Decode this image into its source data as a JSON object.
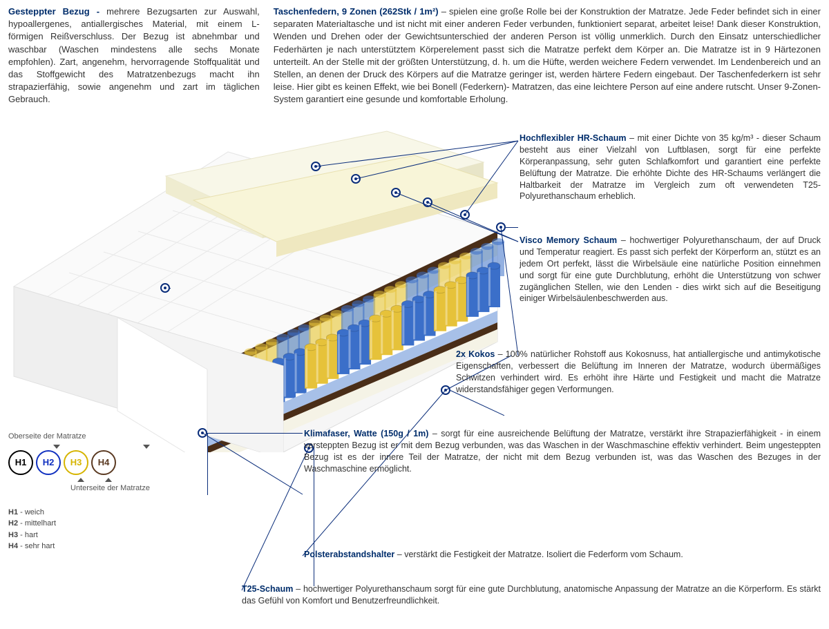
{
  "colors": {
    "title": "#002d6b",
    "body": "#333333",
    "leader": "#0a2d7a",
    "spring_blue": "#3b6fc9",
    "spring_yellow": "#e6c23a",
    "foam_white": "#f5f3e6",
    "cream": "#f8f5d8",
    "coco": "#4a2e18",
    "base_blue": "#a7c0e8",
    "cover": "#f0f0f0"
  },
  "top_left": {
    "title": "Gesteppter Bezug -",
    "text": " mehrere Bezugsarten zur Auswahl, hypoallergenes, antiallergisches Material, mit einem L-förmigen Reißverschluss. Der Bezug ist abnehmbar und waschbar (Waschen mindestens alle sechs Monate empfohlen). Zart, angenehm, hervorragende Stoffqualität und das Stoffgewicht des Matratzenbezugs macht ihn strapazierfähig, sowie angenehm und zart im täglichen Gebrauch."
  },
  "top_right": {
    "title": "Taschenfedern, 9 Zonen (262Stk / 1m²)",
    "text": " – spielen eine große Rolle bei der Konstruktion der Matratze. Jede Feder befindet sich in einer separaten Materialtasche und ist nicht mit einer anderen Feder verbunden, funktioniert separat, arbeitet leise! Dank dieser Konstruktion, Wenden und Drehen oder der Gewichtsunterschied der anderen Person ist völlig unmerklich. Durch den Einsatz unterschiedlicher Federhärten je nach unterstütztem Körperelement passt sich die Matratze perfekt dem Körper an. Die Matratze ist in 9 Härtezonen unterteilt. An der Stelle mit der größten Unterstützung, d. h. um die Hüfte, werden weichere Federn verwendet. Im Lendenbereich und an Stellen, an denen der Druck des Körpers auf die Matratze geringer ist, werden härtere Federn eingebaut. Der Taschenfederkern ist sehr leise. Hier gibt es keinen Effekt, wie bei Bonell (Federkern)- Matratzen, das eine leichtere Person auf eine andere rutscht. Unser 9-Zonen-System garantiert eine gesunde und komfortable Erholung."
  },
  "callouts": {
    "hr": {
      "title": "Hochflexibler HR-Schaum",
      "text": " – mit einer Dichte von 35 kg/m³ - dieser Schaum besteht aus einer Vielzahl von Luftblasen, sorgt für eine perfekte Körperanpassung, sehr guten Schlafkomfort und garantiert eine perfekte Belüftung der Matratze. Die erhöhte Dichte des HR-Schaums verlängert die Haltbarkeit der Matratze im Vergleich zum oft verwendeten T25-Polyurethanschaum erheblich."
    },
    "visco": {
      "title": "Visco Memory Schaum",
      "text": " – hochwertiger Polyurethanschaum, der auf Druck und Temperatur reagiert. Es passt sich perfekt der Körperform an, stützt es an jedem Ort perfekt, lässt die Wirbelsäule eine natürliche Position einnehmen und sorgt für eine gute Durchblutung, erhöht die Unterstützung von schwer zugänglichen Stellen, wie den Lenden - dies wirkt sich auf die Beseitigung einiger Wirbelsäulenbeschwerden aus."
    },
    "kokos": {
      "title": "2x Kokos",
      "text": " – 100% natürlicher Rohstoff aus Kokosnuss, hat antiallergische und antimykotische Eigenschaften, verbessert die Belüftung im Inneren der Matratze, wodurch übermäßiges Schwitzen verhindert wird. Es erhöht ihre Härte und Festigkeit und macht die Matratze widerstandsfähiger gegen Verformungen."
    },
    "klima": {
      "title": "Klimafaser, Watte (150g / 1m)",
      "text": " – sorgt für eine ausreichende Belüftung der Matratze, verstärkt ihre Strapazierfähigkeit - in einem versteppten Bezug ist er mit dem Bezug verbunden, was das Waschen in der Waschmaschine effektiv verhindert. Beim ungesteppten Bezug ist es der innere Teil der Matratze, der nicht mit dem Bezug verbunden ist, was das Waschen des Bezuges in der Waschmaschine ermöglicht."
    },
    "polster": {
      "title": "Polsterabstandshalter",
      "text": " – verstärkt die Festigkeit der Matratze. Isoliert die Federform vom Schaum."
    },
    "t25": {
      "title": "T25-Schaum",
      "text": " – hochwertiger Polyurethanschaum sorgt für eine gute Durchblutung, anatomische Anpassung der Matratze an die Körperform. Es stärkt das Gefühl von Komfort und Benutzerfreundlichkeit."
    }
  },
  "hardness": {
    "top_label": "Oberseite der Matratze",
    "bottom_label": "Unterseite der Matratze",
    "circles": [
      {
        "label": "H1",
        "color": "#000000"
      },
      {
        "label": "H2",
        "color": "#1030c0"
      },
      {
        "label": "H3",
        "color": "#d6b400"
      },
      {
        "label": "H4",
        "color": "#5b3a22"
      }
    ],
    "legend": [
      {
        "code": "H1",
        "text": " - weich"
      },
      {
        "code": "H2",
        "text": " - mittelhart"
      },
      {
        "code": "H3",
        "text": " - hart"
      },
      {
        "code": "H4",
        "text": " - sehr hart"
      }
    ]
  }
}
